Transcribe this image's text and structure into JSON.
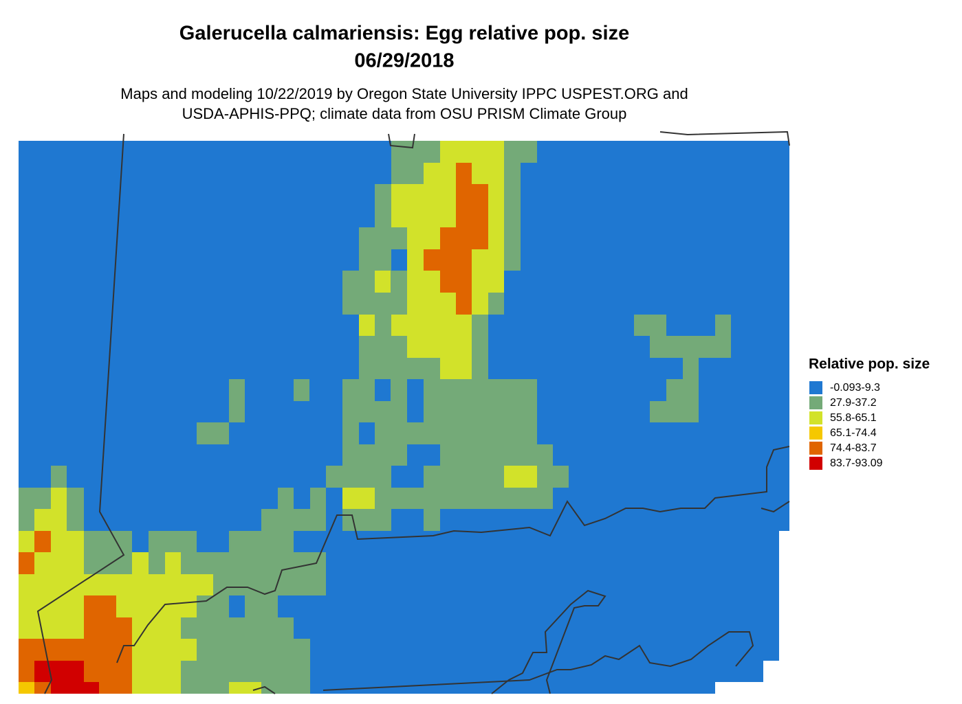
{
  "header": {
    "title": [
      "Galerucella calmariensis: Egg relative pop. size",
      "06/29/2018"
    ],
    "subtitle": [
      "Maps and modeling 10/22/2019 by Oregon State University IPPC USPEST.ORG and",
      "USDA-APHIS-PPQ; climate data from OSU PRISM Climate Group"
    ]
  },
  "legend": {
    "title": "Relative pop. size",
    "items": [
      {
        "label": "-0.093-9.3",
        "color": "#1f78d1"
      },
      {
        "label": "27.9-37.2",
        "color": "#74aa78"
      },
      {
        "label": "55.8-65.1",
        "color": "#d2e22a"
      },
      {
        "label": "65.1-74.4",
        "color": "#f5c800"
      },
      {
        "label": "74.4-83.7",
        "color": "#e06500"
      },
      {
        "label": "83.7-93.09",
        "color": "#d10000"
      }
    ]
  }
}
